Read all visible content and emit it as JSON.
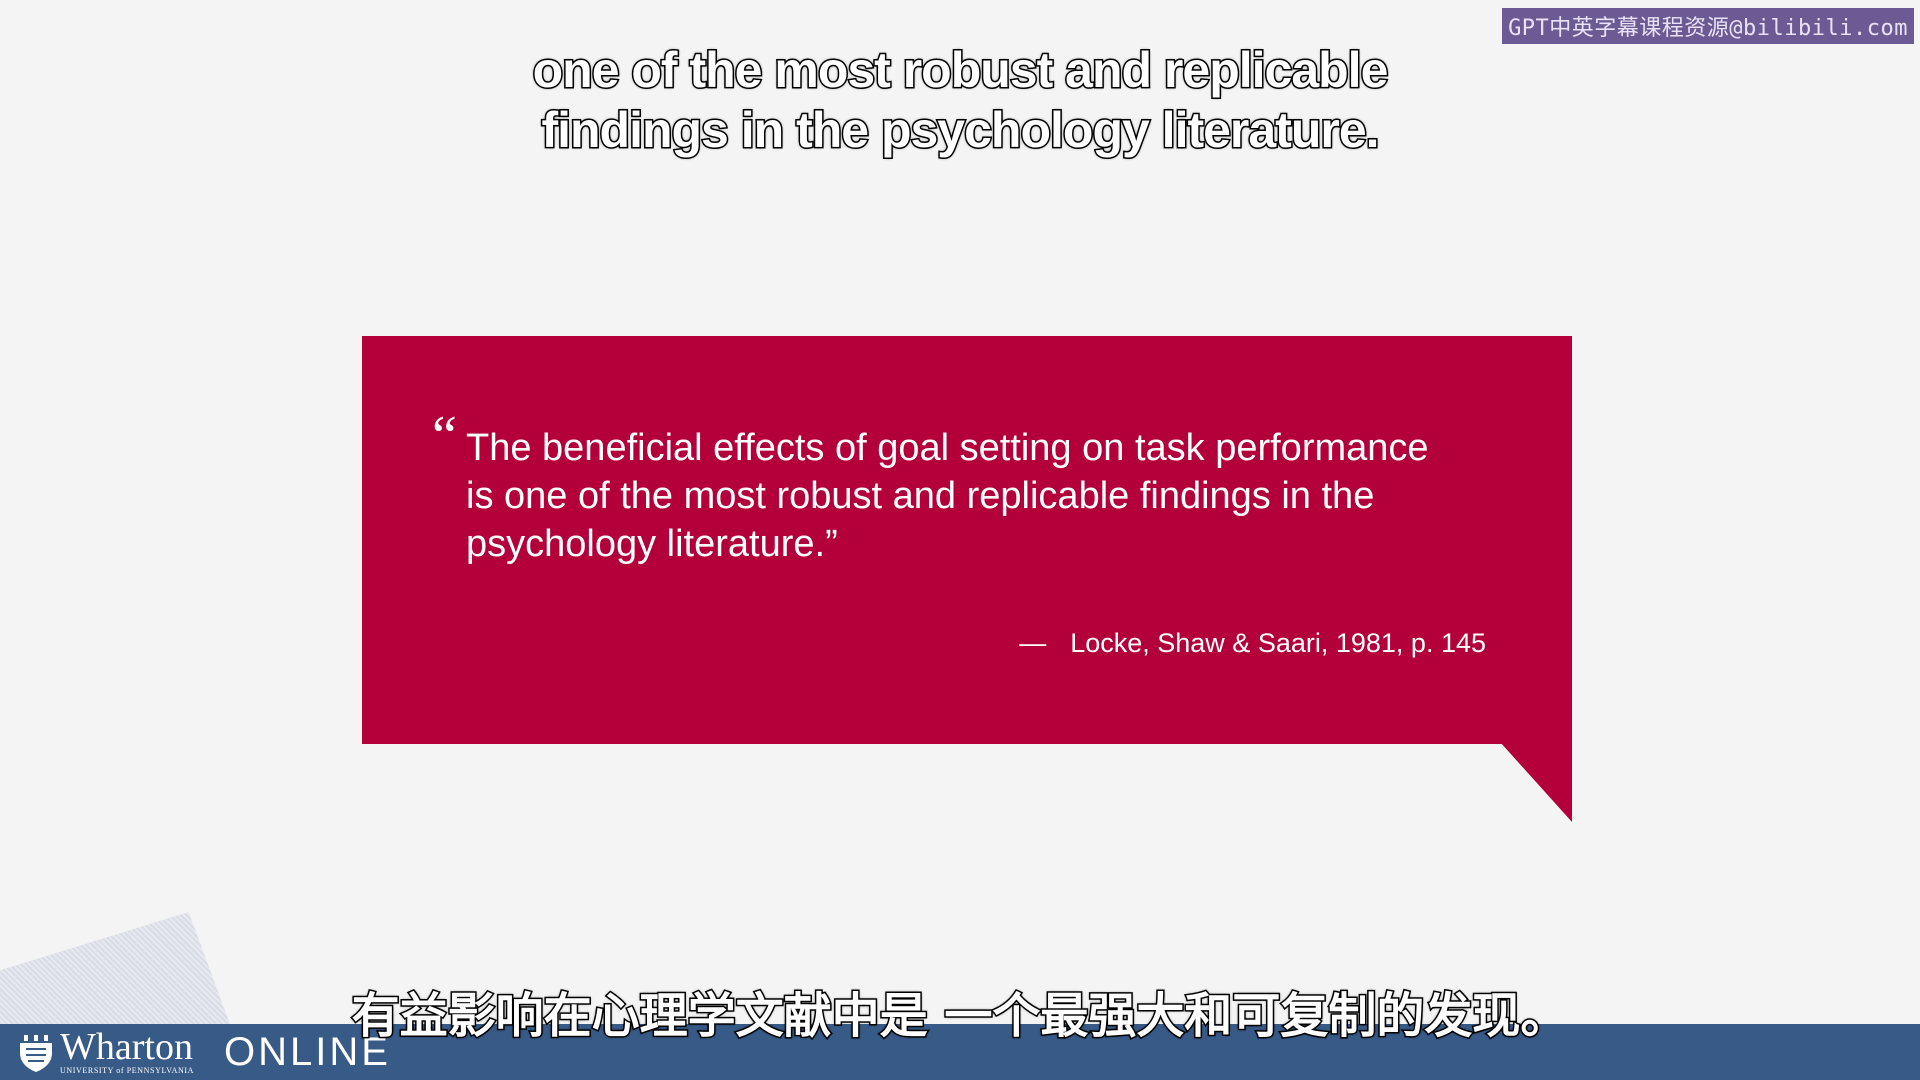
{
  "watermark": "GPT中英字幕课程资源@bilibili.com",
  "subtitle_en": {
    "line1": "one of the most robust and replicable",
    "line2": "findings in the psychology literature."
  },
  "quote": {
    "open_mark": "“",
    "lines": [
      "The beneficial effects of goal setting on task performance",
      "is one of the most robust and replicable findings in the",
      "psychology literature.”"
    ],
    "attribution_dash": "—",
    "attribution": "Locke, Shaw & Saari, 1981, p. 145"
  },
  "brand": {
    "name": "Wharton",
    "sub": "UNIVERSITY of PENNSYLVANIA",
    "online": "ONLINE"
  },
  "subtitle_zh": "有益影响在心理学文献中是 一个最强大和可复制的发现。",
  "colors": {
    "bubble": "#b3003a",
    "bottom_bar": "#385a87",
    "background": "#f4f4f4"
  }
}
